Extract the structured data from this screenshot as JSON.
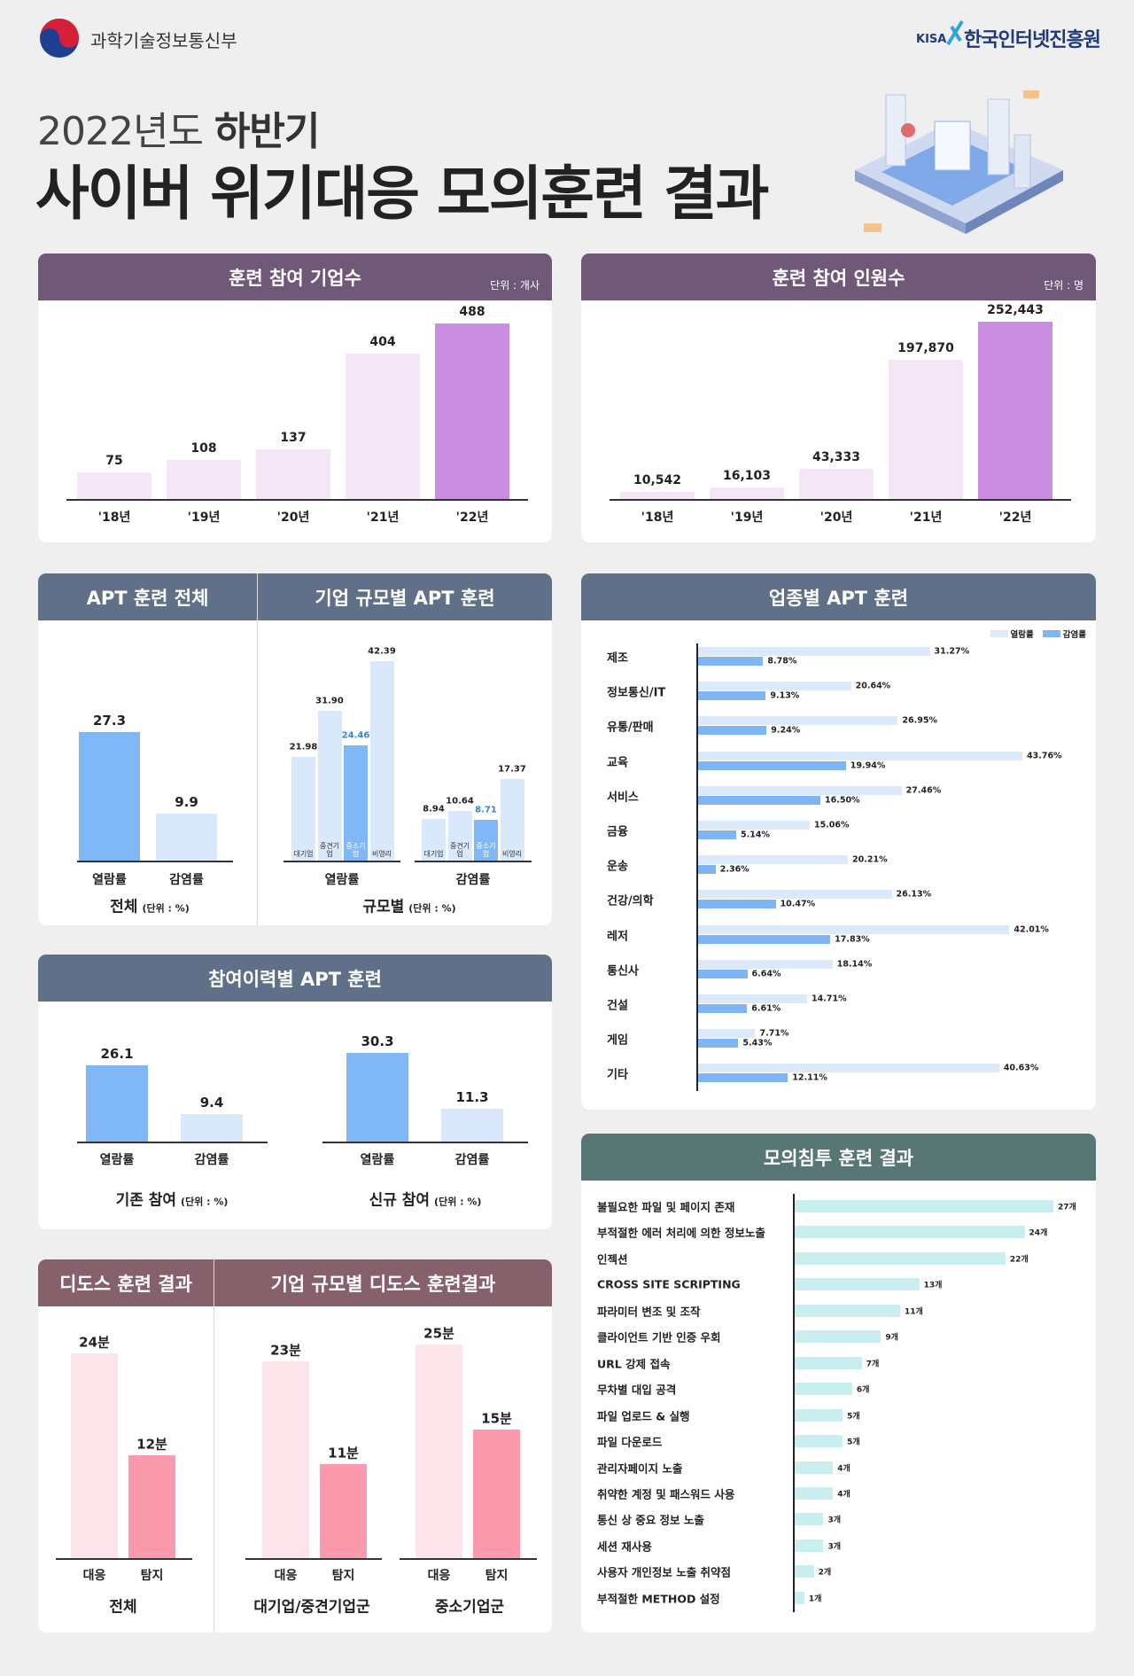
{
  "header": {
    "ministry": "과학기술정보통신부",
    "agency_mark": "KISA",
    "agency": "한국인터넷진흥원",
    "subtitle_year": "2022년도",
    "subtitle_term": "하반기",
    "title": "사이버 위기대응 모의훈련 결과"
  },
  "chart_data": [
    {
      "type": "bar",
      "title": "훈련 참여 기업수",
      "unit": "단위 : 개사",
      "categories": [
        "'18년",
        "'19년",
        "'20년",
        "'21년",
        "'22년"
      ],
      "values": [
        75,
        108,
        137,
        404,
        488
      ],
      "colors": [
        "#f4e6f6",
        "#f4e6f6",
        "#f4e6f6",
        "#f4e6f6",
        "#c98edf"
      ]
    },
    {
      "type": "bar",
      "title": "훈련 참여 인원수",
      "unit": "단위 : 명",
      "categories": [
        "'18년",
        "'19년",
        "'20년",
        "'21년",
        "'22년"
      ],
      "values": [
        10542,
        16103,
        43333,
        197870,
        252443
      ],
      "value_labels": [
        "10,542",
        "16,103",
        "43,333",
        "197,870",
        "252,443"
      ],
      "colors": [
        "#f4e6f6",
        "#f4e6f6",
        "#f4e6f6",
        "#f4e6f6",
        "#c98edf"
      ]
    },
    {
      "type": "bar",
      "title": "APT 훈련 전체",
      "categories": [
        "열람률",
        "감염률"
      ],
      "values": [
        27.3,
        9.9
      ],
      "caption": "전체",
      "unit": "(단위 : %)",
      "colors": [
        "#80b8f7",
        "#d9e8fb"
      ]
    },
    {
      "type": "grouped_bar",
      "title": "기업 규모별 APT 훈련",
      "categories": [
        "열람률",
        "감염률"
      ],
      "caption": "규모별",
      "unit": "(단위 : %)",
      "series": [
        {
          "name": "대기업",
          "color": "#d9e8fb",
          "values": [
            21.98,
            8.94
          ]
        },
        {
          "name": "중견기업",
          "color": "#d9e8fb",
          "values": [
            31.9,
            10.64
          ],
          "value_labels": [
            "31.90",
            "10.64"
          ]
        },
        {
          "name": "중소기업",
          "color": "#80b8f7",
          "label_color": "#3a7fd5",
          "values": [
            24.46,
            8.71
          ]
        },
        {
          "name": "비영리",
          "color": "#d9e8fb",
          "values": [
            42.39,
            17.37
          ]
        }
      ]
    },
    {
      "type": "hbar",
      "title": "업종별 APT 훈련",
      "categories": [
        "제조",
        "정보통신/IT",
        "유통/판매",
        "교육",
        "서비스",
        "금융",
        "운송",
        "건강/의학",
        "레저",
        "통신사",
        "건설",
        "게임",
        "기타"
      ],
      "series": [
        {
          "name": "열람률",
          "color": "#dbe9fb",
          "values": [
            31.27,
            20.64,
            26.95,
            43.76,
            27.46,
            15.06,
            20.21,
            26.13,
            42.01,
            18.14,
            14.71,
            7.71,
            40.63
          ],
          "value_labels": [
            "31.27%",
            "20.64%",
            "26.95%",
            "43.76%",
            "27.46%",
            "15.06%",
            "20.21%",
            "26.13%",
            "42.01%",
            "18.14%",
            "14.71%",
            "7.71%",
            "40.63%"
          ]
        },
        {
          "name": "감염률",
          "color": "#7fb5f5",
          "values": [
            8.78,
            9.13,
            9.24,
            19.94,
            16.5,
            5.14,
            2.36,
            10.47,
            17.83,
            6.64,
            6.61,
            5.43,
            12.11
          ],
          "value_labels": [
            "8.78%",
            "9.13%",
            "9.24%",
            "19.94%",
            "16.50%",
            "5.14%",
            "2.36%",
            "10.47%",
            "17.83%",
            "6.64%",
            "6.61%",
            "5.43%",
            "12.11%"
          ]
        }
      ],
      "legend": "top-right"
    },
    {
      "type": "bar",
      "title": "참여이력별 APT 훈련",
      "categories": [
        "열람률",
        "감염률"
      ],
      "unit": "(단위 : %)",
      "colors": [
        "#80b8f7",
        "#d9e8fb"
      ],
      "groups": [
        {
          "name": "기존 참여",
          "values": [
            26.1,
            9.4
          ]
        },
        {
          "name": "신규 참여",
          "values": [
            30.3,
            11.3
          ]
        }
      ]
    },
    {
      "type": "hbar",
      "title": "모의침투 훈련 결과",
      "color": "#c9eef0",
      "categories": [
        "불필요한 파일 및 페이지 존재",
        "부적절한 에러 처리에 의한 정보노출",
        "인젝션",
        "CROSS SITE SCRIPTING",
        "파라미터 변조 및 조작",
        "클라이언트 기반 인증 우회",
        "URL 강제 접속",
        "무차별 대입 공격",
        "파일 업로드 & 실행",
        "파일 다운로드",
        "관리자페이지 노출",
        "취약한 계정 및 패스워드 사용",
        "통신 상 중요 정보 노출",
        "세션 재사용",
        "사용자 개인정보 노출 취약점",
        "부적절한 METHOD 설정"
      ],
      "values": [
        27,
        24,
        22,
        13,
        11,
        9,
        7,
        6,
        5,
        5,
        4,
        4,
        3,
        3,
        2,
        1
      ],
      "value_labels": [
        "27개",
        "24개",
        "22개",
        "13개",
        "11개",
        "9개",
        "7개",
        "6개",
        "5개",
        "5개",
        "4개",
        "4개",
        "3개",
        "3개",
        "2개",
        "1개"
      ]
    },
    {
      "type": "bar",
      "title": "디도스 훈련 결과",
      "categories": [
        "대응",
        "탐지"
      ],
      "values": [
        24,
        12
      ],
      "value_labels": [
        "24분",
        "12분"
      ],
      "caption": "전체",
      "colors": [
        "#fde4ea",
        "#fc99ad"
      ]
    },
    {
      "type": "bar",
      "title": "기업 규모별 디도스 훈련결과",
      "categories": [
        "대응",
        "탐지"
      ],
      "colors": [
        "#fde4ea",
        "#fc99ad"
      ],
      "groups": [
        {
          "name": "대기업/중견기업군",
          "values": [
            23,
            11
          ],
          "value_labels": [
            "23분",
            "11분"
          ]
        },
        {
          "name": "중소기업군",
          "values": [
            25,
            15
          ],
          "value_labels": [
            "25분",
            "15분"
          ]
        }
      ]
    }
  ]
}
